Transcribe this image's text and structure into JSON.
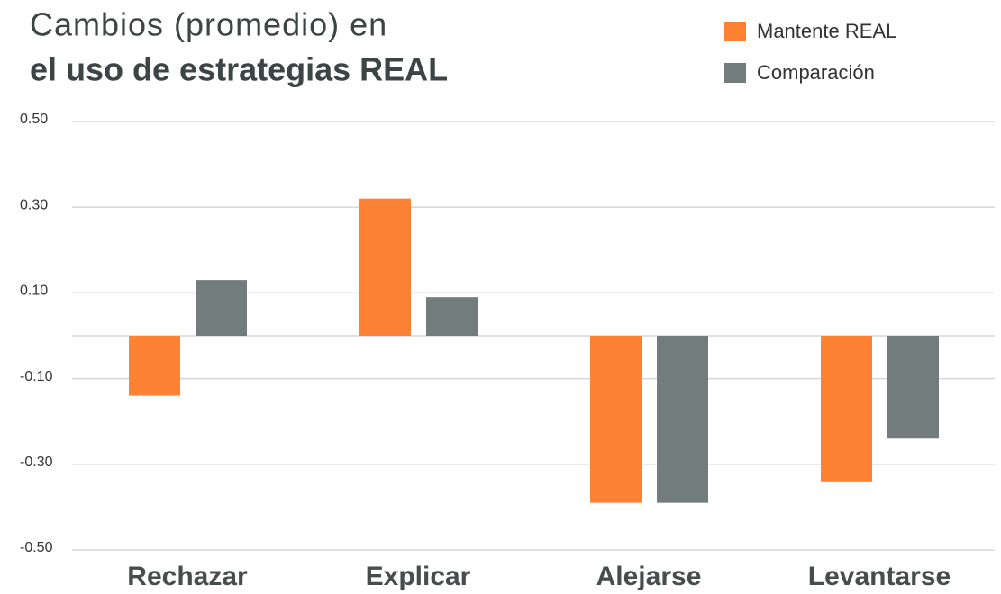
{
  "chart_data": {
    "type": "bar",
    "title": "Cambios (promedio) en",
    "subtitle": "el uso de estrategias REAL",
    "categories": [
      "Rechazar",
      "Explicar",
      "Alejarse",
      "Levantarse"
    ],
    "series": [
      {
        "name": "Mantente REAL",
        "color": "#ff8133",
        "values": [
          -0.14,
          0.32,
          -0.39,
          -0.34
        ]
      },
      {
        "name": "Comparación",
        "color": "#737c7c",
        "values": [
          0.13,
          0.09,
          -0.39,
          -0.24
        ]
      }
    ],
    "ylim": [
      -0.5,
      0.5
    ],
    "yticks": [
      {
        "value": 0.5,
        "label": "0.50"
      },
      {
        "value": 0.3,
        "label": "0.30"
      },
      {
        "value": 0.1,
        "label": "0.10"
      },
      {
        "value": -0.1,
        "label": "-0.10"
      },
      {
        "value": -0.3,
        "label": "-0.30"
      },
      {
        "value": -0.5,
        "label": "-0.50"
      }
    ],
    "grid": true,
    "legend": "top-right"
  }
}
